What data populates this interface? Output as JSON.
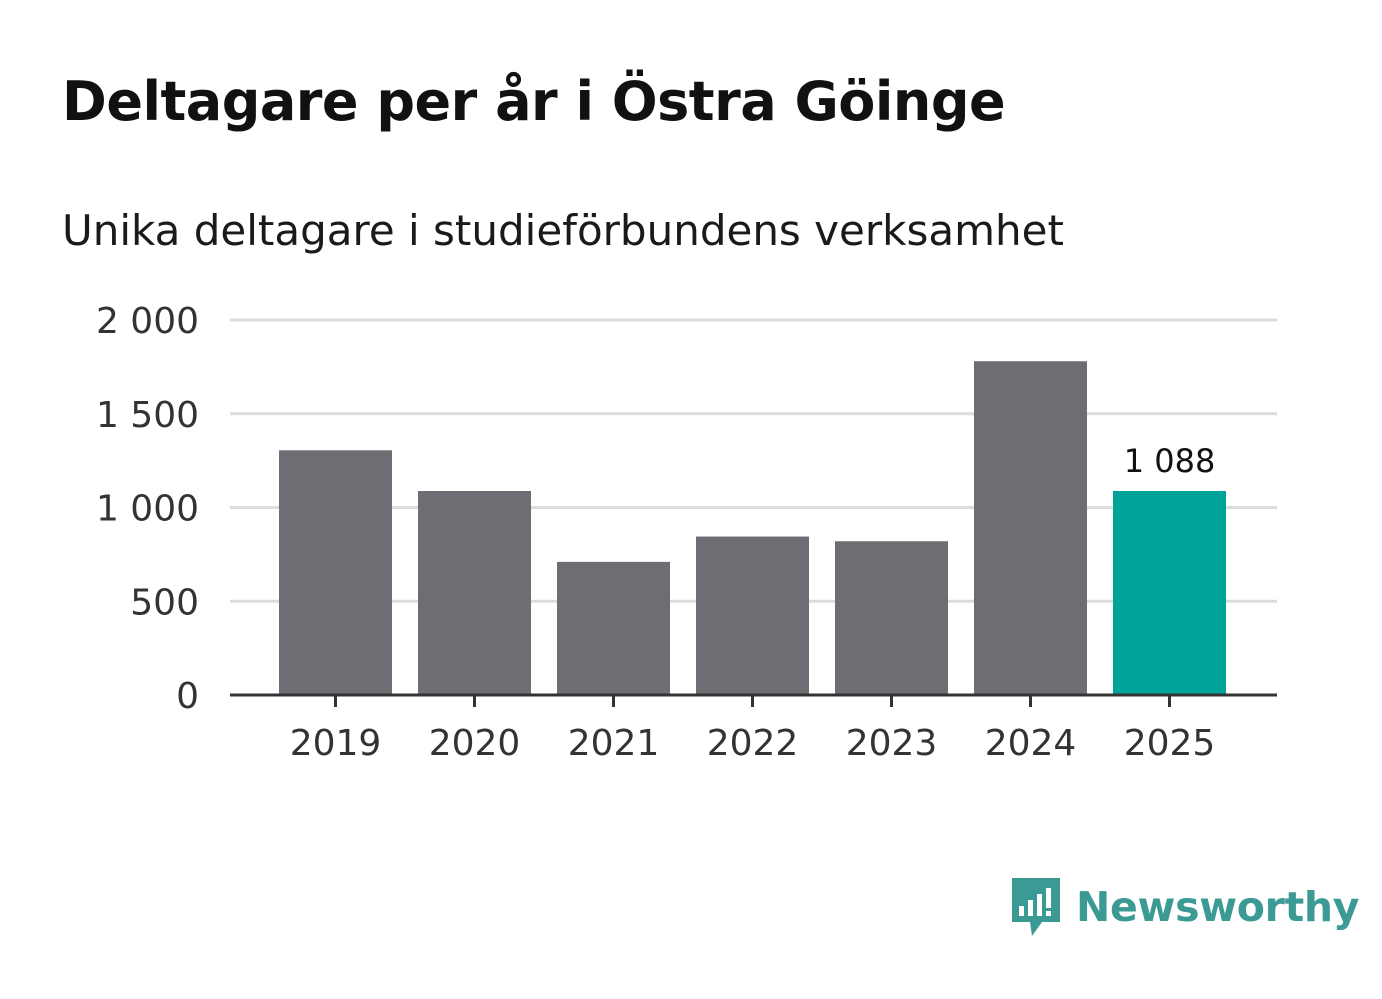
{
  "title": "Deltagare per år i Östra Göinge",
  "subtitle": "Unika deltagare i studieförbundens verksamhet",
  "brand": {
    "name": "Newsworthy",
    "icon": "newsworthy-logo-icon",
    "color": "#3b9b94"
  },
  "colors": {
    "bar": "#6e6d73",
    "highlight": "#00a39a",
    "grid": "#dcdcdc",
    "axis": "#333333"
  },
  "chart_data": {
    "type": "bar",
    "title": "Deltagare per år i Östra Göinge",
    "subtitle": "Unika deltagare i studieförbundens verksamhet",
    "xlabel": "",
    "ylabel": "",
    "categories": [
      "2019",
      "2020",
      "2021",
      "2022",
      "2023",
      "2024",
      "2025"
    ],
    "values": [
      1305,
      1088,
      710,
      845,
      820,
      1780,
      1088
    ],
    "highlight_index": 6,
    "data_labels": [
      {
        "index": 6,
        "text": "1 088"
      }
    ],
    "ylim": [
      0,
      2000
    ],
    "yticks": [
      {
        "value": 0,
        "label": "0"
      },
      {
        "value": 500,
        "label": "500"
      },
      {
        "value": 1000,
        "label": "1 000"
      },
      {
        "value": 1500,
        "label": "1 500"
      },
      {
        "value": 2000,
        "label": "2 000"
      }
    ],
    "grid": true
  }
}
